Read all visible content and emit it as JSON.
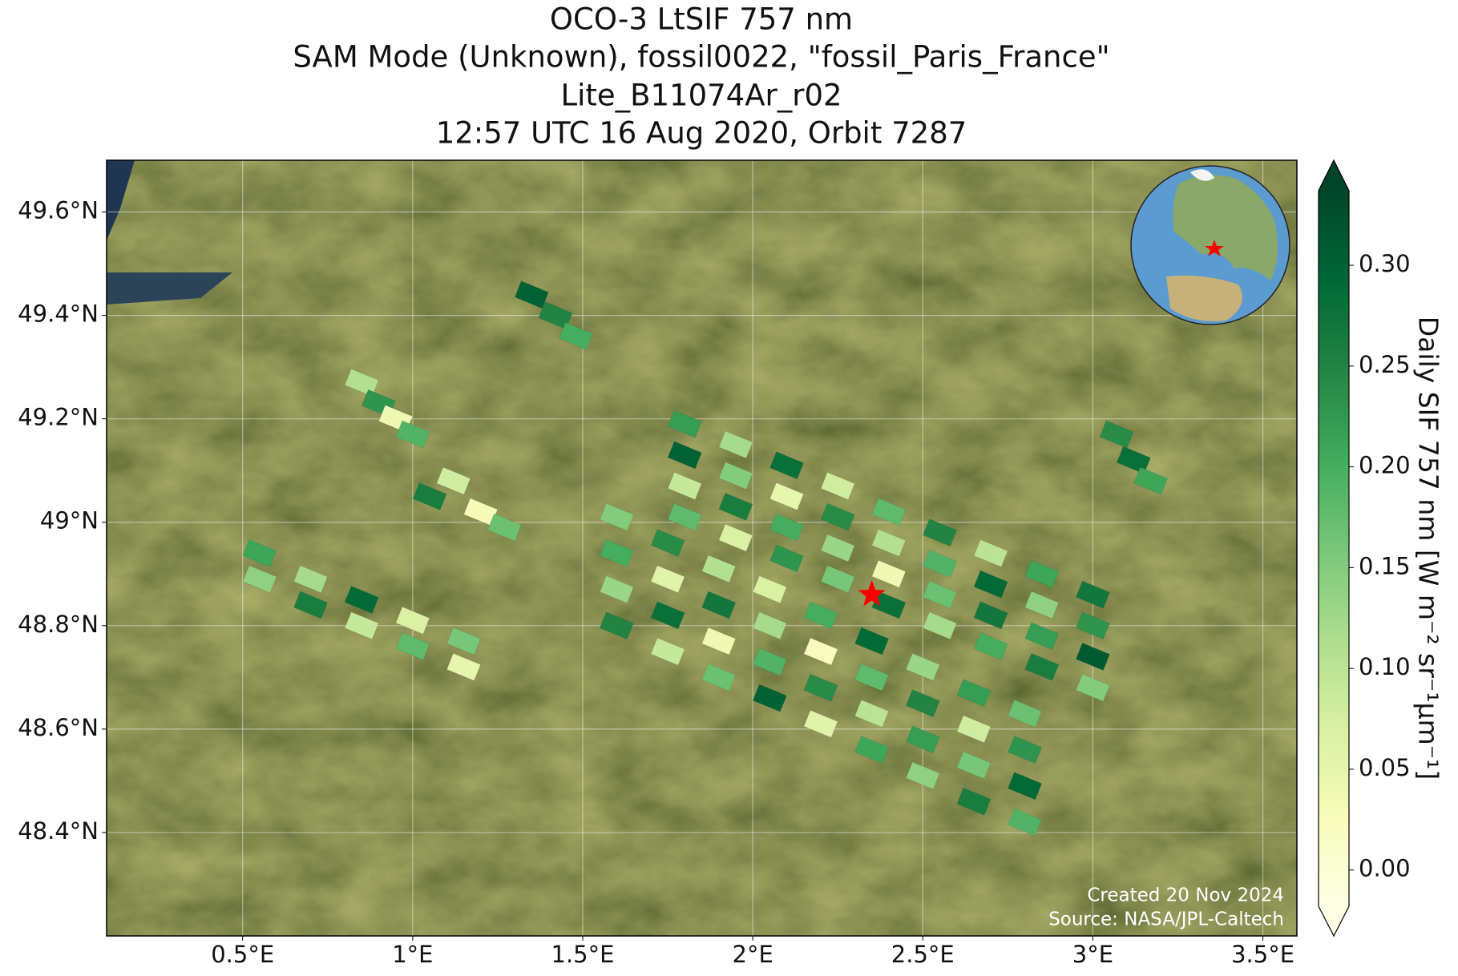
{
  "chart_data": {
    "type": "map",
    "title": [
      "OCO-3 LtSIF 757 nm",
      "SAM Mode (Unknown), fossil0022, \"fossil_Paris_France\"",
      "Lite_B11074Ar_r02",
      "12:57 UTC 16 Aug 2020, Orbit 7287"
    ],
    "xlim": [
      0.1,
      3.6
    ],
    "ylim": [
      48.2,
      49.7
    ],
    "xticks": [
      {
        "value": 0.5,
        "label": "0.5°E"
      },
      {
        "value": 1,
        "label": "1°E"
      },
      {
        "value": 1.5,
        "label": "1.5°E"
      },
      {
        "value": 2,
        "label": "2°E"
      },
      {
        "value": 2.5,
        "label": "2.5°E"
      },
      {
        "value": 3,
        "label": "3°E"
      },
      {
        "value": 3.5,
        "label": "3.5°E"
      }
    ],
    "yticks": [
      {
        "value": 48.4,
        "label": "48.4°N"
      },
      {
        "value": 48.6,
        "label": "48.6°N"
      },
      {
        "value": 48.8,
        "label": "48.8°N"
      },
      {
        "value": 49,
        "label": "49°N"
      },
      {
        "value": 49.2,
        "label": "49.2°N"
      },
      {
        "value": 49.4,
        "label": "49.4°N"
      },
      {
        "value": 49.6,
        "label": "49.6°N"
      }
    ],
    "grid": true,
    "cells": {
      "lon": [
        1.8,
        1.95,
        2.1,
        2.25,
        2.4,
        2.55,
        2.7,
        2.85,
        3.0,
        1.8,
        1.95,
        2.1,
        2.25,
        2.4,
        2.55,
        2.7,
        2.85,
        3.0,
        1.8,
        1.95,
        2.1,
        2.25,
        2.4,
        2.55,
        2.7,
        2.85,
        3.0,
        1.8,
        1.95,
        2.1,
        2.25,
        2.4,
        2.55,
        2.7,
        2.85,
        3.0,
        1.6,
        1.75,
        1.9,
        2.05,
        2.2,
        2.35,
        2.5,
        2.65,
        2.8,
        1.6,
        1.75,
        1.9,
        2.05,
        2.2,
        2.35,
        2.5,
        2.65,
        2.8,
        1.6,
        1.75,
        1.9,
        2.05,
        2.2,
        2.35,
        2.5,
        2.65,
        2.8,
        1.6,
        1.75,
        1.9,
        2.05,
        2.2,
        2.35,
        2.5,
        2.65,
        2.8,
        0.55,
        0.7,
        0.85,
        1.0,
        1.15,
        0.55,
        0.7,
        0.85,
        1.0,
        1.15,
        0.85,
        0.9,
        0.95,
        1.0,
        1.35,
        1.42,
        1.48,
        3.07,
        3.12,
        3.17,
        1.05,
        1.12,
        1.2,
        1.27
      ],
      "lat": [
        49.19,
        49.15,
        49.11,
        49.07,
        49.02,
        48.98,
        48.94,
        48.9,
        48.86,
        49.13,
        49.09,
        49.05,
        49.01,
        48.96,
        48.92,
        48.88,
        48.84,
        48.8,
        49.07,
        49.03,
        48.99,
        48.95,
        48.9,
        48.86,
        48.82,
        48.78,
        48.74,
        49.01,
        48.97,
        48.93,
        48.89,
        48.84,
        48.8,
        48.76,
        48.72,
        48.68,
        48.8,
        48.75,
        48.7,
        48.66,
        48.61,
        48.56,
        48.51,
        48.46,
        48.42,
        48.87,
        48.82,
        48.77,
        48.73,
        48.68,
        48.63,
        48.58,
        48.53,
        48.49,
        48.94,
        48.89,
        48.84,
        48.8,
        48.75,
        48.7,
        48.65,
        48.6,
        48.56,
        49.01,
        48.96,
        48.91,
        48.87,
        48.82,
        48.77,
        48.72,
        48.67,
        48.63,
        48.89,
        48.84,
        48.8,
        48.76,
        48.72,
        48.94,
        48.89,
        48.85,
        48.81,
        48.77,
        49.27,
        49.23,
        49.2,
        49.17,
        49.44,
        49.4,
        49.36,
        49.17,
        49.12,
        49.08,
        49.05,
        49.08,
        49.02,
        48.99
      ],
      "values": [
        0.22,
        0.12,
        0.28,
        0.08,
        0.18,
        0.25,
        0.1,
        0.21,
        0.27,
        0.3,
        0.15,
        0.05,
        0.24,
        0.11,
        0.19,
        0.29,
        0.14,
        0.23,
        0.09,
        0.26,
        0.2,
        0.13,
        0.04,
        0.17,
        0.27,
        0.22,
        0.31,
        0.18,
        0.07,
        0.23,
        0.16,
        0.28,
        0.12,
        0.2,
        0.26,
        0.15,
        0.25,
        0.09,
        0.17,
        0.3,
        0.06,
        0.21,
        0.14,
        0.26,
        0.19,
        0.13,
        0.28,
        0.04,
        0.19,
        0.24,
        0.1,
        0.22,
        0.16,
        0.29,
        0.2,
        0.06,
        0.27,
        0.12,
        0.02,
        0.18,
        0.25,
        0.08,
        0.23,
        0.15,
        0.24,
        0.11,
        0.07,
        0.2,
        0.29,
        0.13,
        0.22,
        0.17,
        0.14,
        0.26,
        0.09,
        0.18,
        0.05,
        0.21,
        0.12,
        0.29,
        0.07,
        0.16,
        0.11,
        0.23,
        0.04,
        0.19,
        0.3,
        0.25,
        0.2,
        0.24,
        0.28,
        0.21,
        0.26,
        0.08,
        0.03,
        0.17
      ]
    },
    "target": {
      "lon": 2.35,
      "lat": 48.86,
      "color": "#ff0000"
    },
    "colorbar": {
      "label": "Daily SIF 757 nm [W m⁻² sr⁻¹µm⁻¹]",
      "clim": [
        -0.018,
        0.337
      ],
      "ticks": [
        {
          "value": 0,
          "label": "0.00"
        },
        {
          "value": 0.05,
          "label": "0.05"
        },
        {
          "value": 0.1,
          "label": "0.10"
        },
        {
          "value": 0.15,
          "label": "0.15"
        },
        {
          "value": 0.2,
          "label": "0.20"
        },
        {
          "value": 0.25,
          "label": "0.25"
        },
        {
          "value": 0.3,
          "label": "0.30"
        }
      ],
      "colormap": [
        "#ffffe5",
        "#f7fcb9",
        "#d9f0a3",
        "#addd8e",
        "#78c679",
        "#41ab5d",
        "#238443",
        "#006837",
        "#004529"
      ]
    },
    "annotations": [
      "Created 20 Nov 2024",
      "Source: NASA/JPL-Caltech"
    ]
  }
}
